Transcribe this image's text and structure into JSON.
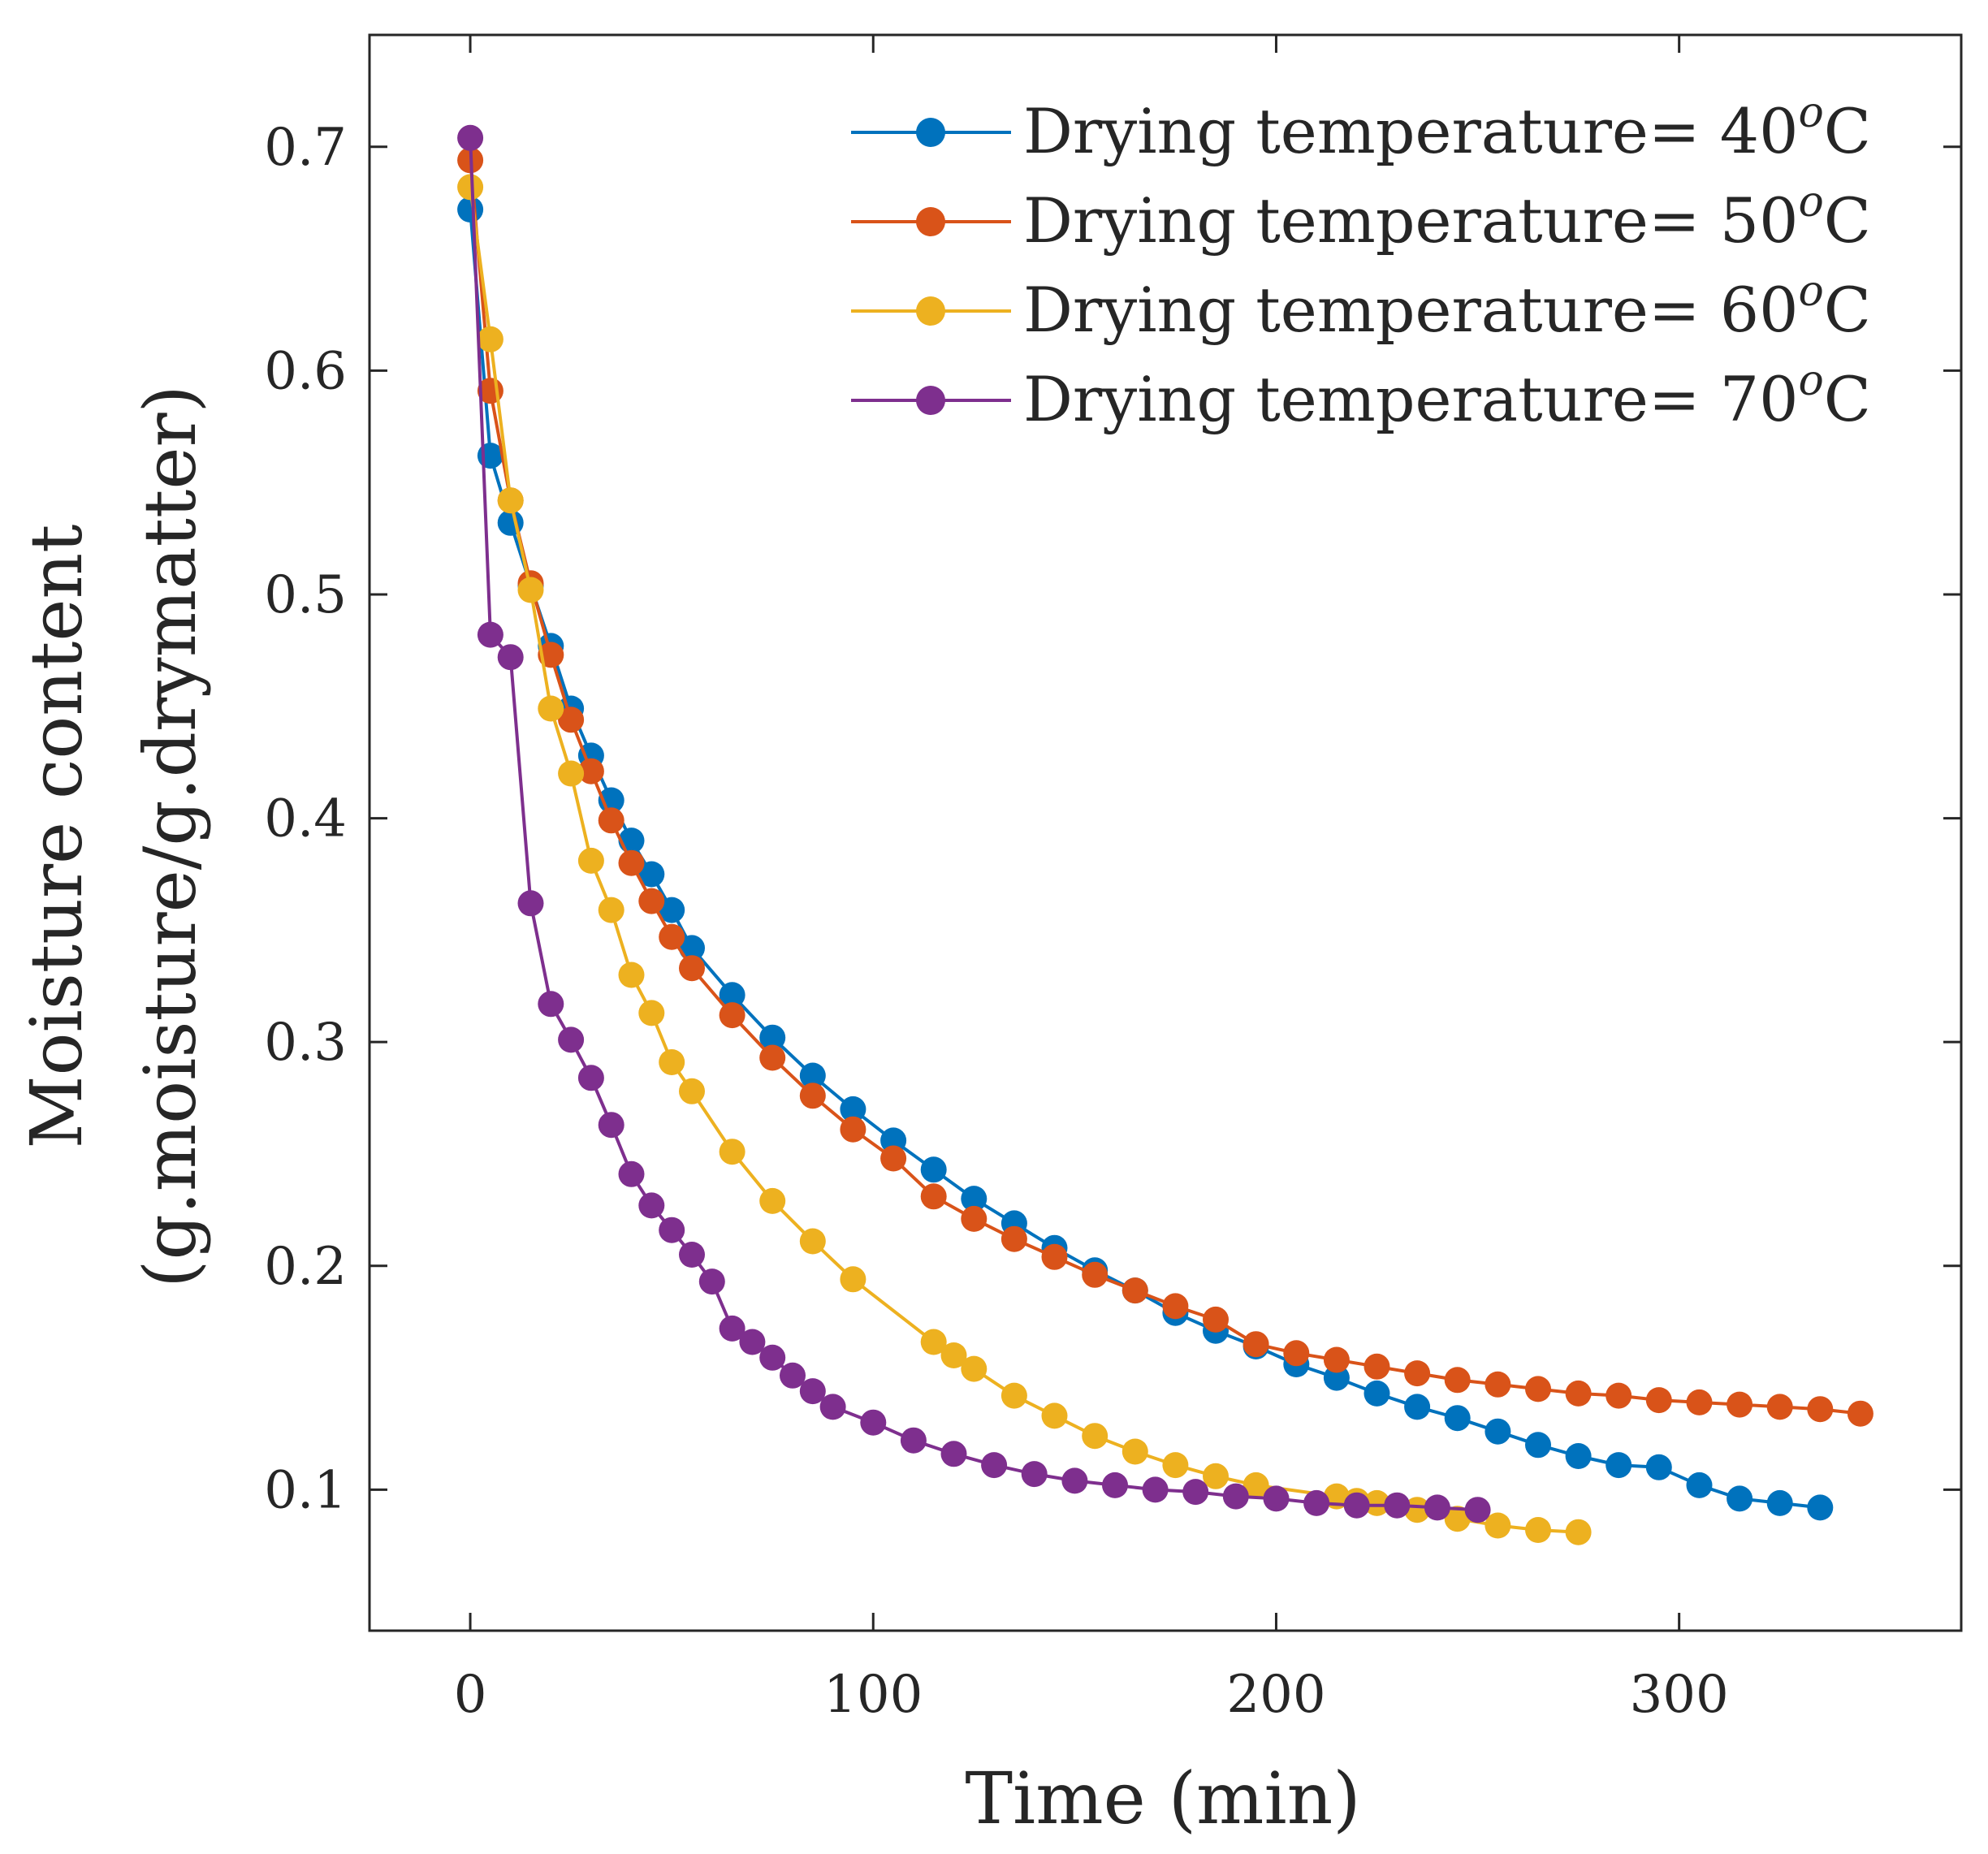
{
  "chart_data": {
    "type": "line",
    "title": "",
    "xlabel": "Time (min)",
    "ylabel": "Moisture content",
    "ylabel2": "(g.moisture/g.drymatter)",
    "xlim": [
      -25,
      370
    ],
    "ylim": [
      0.037,
      0.75
    ],
    "xticks": [
      0,
      100,
      200,
      300
    ],
    "yticks": [
      0.1,
      0.2,
      0.3,
      0.4,
      0.5,
      0.6,
      0.7
    ],
    "legend_position": "top-right",
    "series": [
      {
        "name": "Drying temperature= 40",
        "superscript": "o",
        "unit": "C",
        "color": "#0072BD",
        "x": [
          0,
          5,
          10,
          15,
          20,
          25,
          30,
          35,
          40,
          45,
          50,
          55,
          65,
          75,
          85,
          95,
          105,
          115,
          125,
          135,
          145,
          155,
          165,
          175,
          185,
          195,
          205,
          215,
          225,
          235,
          245,
          255,
          265,
          275,
          285,
          295,
          305,
          315,
          325,
          335
        ],
        "y": [
          0.672,
          0.562,
          0.532,
          0.504,
          0.477,
          0.449,
          0.428,
          0.408,
          0.39,
          0.375,
          0.359,
          0.342,
          0.321,
          0.302,
          0.285,
          0.27,
          0.256,
          0.243,
          0.23,
          0.219,
          0.208,
          0.198,
          0.189,
          0.179,
          0.171,
          0.164,
          0.156,
          0.15,
          0.143,
          0.137,
          0.132,
          0.126,
          0.12,
          0.115,
          0.111,
          0.11,
          0.102,
          0.096,
          0.094,
          0.092
        ]
      },
      {
        "name": "Drying temperature= 50",
        "superscript": "o",
        "unit": "C",
        "color": "#D95319",
        "x": [
          0,
          5,
          10,
          15,
          20,
          25,
          30,
          35,
          40,
          45,
          50,
          55,
          65,
          75,
          85,
          95,
          105,
          115,
          125,
          135,
          145,
          155,
          165,
          175,
          185,
          195,
          205,
          215,
          225,
          235,
          245,
          255,
          265,
          275,
          285,
          295,
          305,
          315,
          325,
          335,
          345
        ],
        "y": [
          0.694,
          0.591,
          0.542,
          0.505,
          0.473,
          0.444,
          0.421,
          0.399,
          0.38,
          0.363,
          0.347,
          0.333,
          0.312,
          0.293,
          0.276,
          0.261,
          0.248,
          0.231,
          0.221,
          0.212,
          0.204,
          0.196,
          0.189,
          0.182,
          0.176,
          0.165,
          0.161,
          0.158,
          0.155,
          0.152,
          0.149,
          0.147,
          0.145,
          0.143,
          0.142,
          0.14,
          0.139,
          0.138,
          0.137,
          0.136,
          0.134
        ]
      },
      {
        "name": "Drying temperature= 60",
        "superscript": "o",
        "unit": "C",
        "color": "#EDB120",
        "x": [
          0,
          5,
          10,
          15,
          20,
          25,
          30,
          35,
          40,
          45,
          50,
          55,
          65,
          75,
          85,
          95,
          115,
          120,
          125,
          135,
          145,
          155,
          165,
          175,
          185,
          195,
          215,
          220,
          225,
          235,
          245,
          255,
          265,
          275
        ],
        "y": [
          0.682,
          0.614,
          0.542,
          0.502,
          0.449,
          0.42,
          0.381,
          0.359,
          0.33,
          0.313,
          0.291,
          0.278,
          0.251,
          0.229,
          0.211,
          0.194,
          0.166,
          0.16,
          0.154,
          0.142,
          0.133,
          0.124,
          0.117,
          0.111,
          0.106,
          0.102,
          0.097,
          0.095,
          0.094,
          0.091,
          0.087,
          0.084,
          0.082,
          0.081
        ]
      },
      {
        "name": "Drying temperature= 70",
        "superscript": "o",
        "unit": "C",
        "color": "#7E2F8E",
        "x": [
          0,
          5,
          10,
          15,
          20,
          25,
          30,
          35,
          40,
          45,
          50,
          55,
          60,
          65,
          70,
          75,
          80,
          85,
          90,
          100,
          110,
          120,
          130,
          140,
          150,
          160,
          170,
          180,
          190,
          200,
          210,
          220,
          230,
          240,
          250
        ],
        "y": [
          0.704,
          0.482,
          0.472,
          0.362,
          0.317,
          0.301,
          0.284,
          0.263,
          0.241,
          0.227,
          0.216,
          0.205,
          0.193,
          0.172,
          0.166,
          0.159,
          0.151,
          0.144,
          0.137,
          0.13,
          0.122,
          0.116,
          0.111,
          0.107,
          0.104,
          0.102,
          0.1,
          0.099,
          0.097,
          0.096,
          0.094,
          0.093,
          0.093,
          0.092,
          0.091
        ]
      }
    ]
  }
}
